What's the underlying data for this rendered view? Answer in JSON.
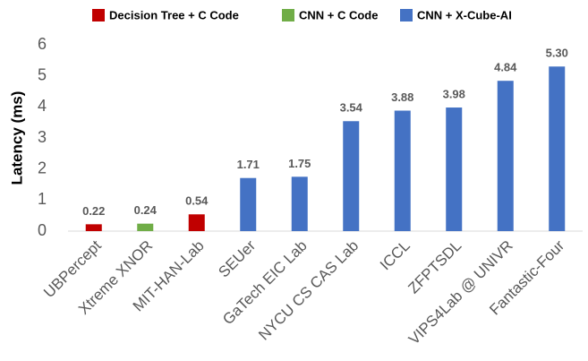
{
  "chart_data": {
    "type": "bar",
    "y_label": "Latency (ms)",
    "categories": [
      "UBPercept",
      "Xtreme XNOR",
      "MIT-HAN-Lab",
      "SEUer",
      "GaTech EIC Lab",
      "NYCU CS CAS Lab",
      "ICCL",
      "ZFPTSDL",
      "VIPS4Lab @ UNIVR",
      "Fantastic-Four"
    ],
    "series": [
      {
        "name": "Decision Tree + C Code",
        "color": "#c00000",
        "values": [
          0.22,
          null,
          0.54,
          null,
          null,
          null,
          null,
          null,
          null,
          null
        ],
        "value_labels": [
          "0.22",
          null,
          "0.54",
          null,
          null,
          null,
          null,
          null,
          null,
          null
        ]
      },
      {
        "name": "CNN + C Code",
        "color": "#70ad47",
        "values": [
          null,
          0.24,
          null,
          null,
          null,
          null,
          null,
          null,
          null,
          null
        ],
        "value_labels": [
          null,
          "0.24",
          null,
          null,
          null,
          null,
          null,
          null,
          null,
          null
        ]
      },
      {
        "name": "CNN + X-Cube-AI",
        "color": "#4472c4",
        "values": [
          null,
          null,
          null,
          1.71,
          1.75,
          3.54,
          3.88,
          3.98,
          4.84,
          5.3
        ],
        "value_labels": [
          null,
          null,
          null,
          "1.71",
          "1.75",
          "3.54",
          "3.88",
          "3.98",
          "4.84",
          "5.30"
        ]
      }
    ],
    "ylim": [
      0,
      6
    ],
    "yticks": [
      0,
      1,
      2,
      3,
      4,
      5,
      6
    ],
    "legend": "top"
  }
}
